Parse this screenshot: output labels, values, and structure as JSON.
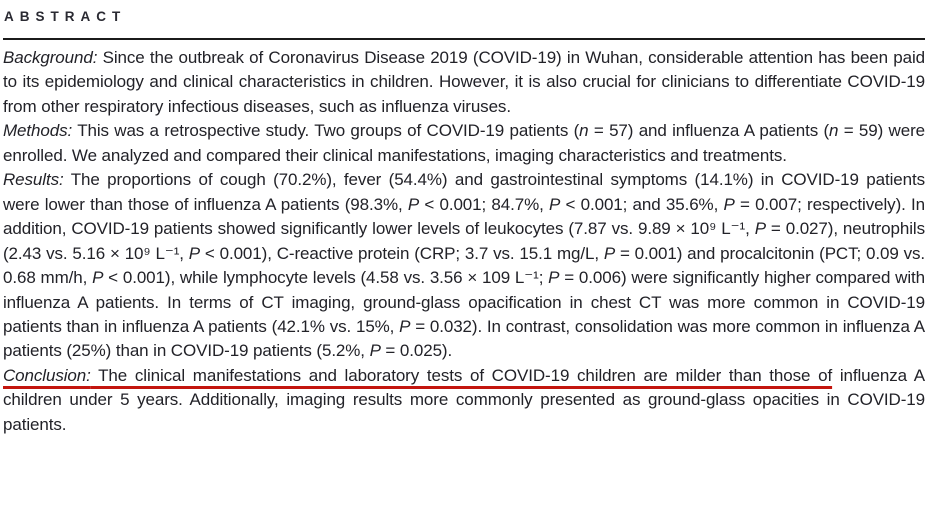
{
  "colors": {
    "annotation_red": "#c3150e",
    "text": "#222228",
    "divider": "#1b1b1b"
  },
  "abstract": {
    "heading": "ABSTRACT",
    "sections": [
      {
        "label": "Background:",
        "segments": [
          {
            "t": " Since the outbreak of Coronavirus Disease 2019 (COVID-19) in Wuhan, considerable attention has been paid to its epidemiology and clinical characteristics in children. However, it is also crucial for clinicians to differentiate COVID-19 from other respiratory infectious diseases, such as influenza viruses."
          }
        ]
      },
      {
        "label": "Methods:",
        "segments": [
          {
            "t": " This was a retrospective study. Two groups of COVID-19 patients ("
          },
          {
            "t": "n",
            "i": true
          },
          {
            "t": " = 57) and influenza A patients ("
          },
          {
            "t": "n",
            "i": true
          },
          {
            "t": " = 59) were enrolled. We analyzed and compared their clinical manifestations, imaging characteristics and treatments."
          }
        ]
      },
      {
        "label": "Results:",
        "segments": [
          {
            "t": " The proportions of cough (70.2%), fever (54.4%) and gastrointestinal symptoms (14.1%) in COVID-19 patients were lower than those of influenza A patients (98.3%, "
          },
          {
            "t": "P",
            "i": true
          },
          {
            "t": " < 0.001; 84.7%, "
          },
          {
            "t": "P",
            "i": true
          },
          {
            "t": " < 0.001; and 35.6%, "
          },
          {
            "t": "P",
            "i": true
          },
          {
            "t": " = 0.007; respectively). In addition, COVID-19 patients showed significantly lower levels of leukocytes (7.87 vs. 9.89 × 10⁹ L⁻¹, "
          },
          {
            "t": "P",
            "i": true
          },
          {
            "t": " = 0.027), neutrophils (2.43 vs. 5.16 × 10⁹ L⁻¹, "
          },
          {
            "t": "P",
            "i": true
          },
          {
            "t": " < 0.001), C-reactive protein (CRP; 3.7 vs. 15.1 mg/L, "
          },
          {
            "t": "P",
            "i": true
          },
          {
            "t": " = 0.001) and procalcitonin (PCT; 0.09 vs. 0.68 mm/h, "
          },
          {
            "t": "P",
            "i": true
          },
          {
            "t": " < 0.001), while lymphocyte levels (4.58 vs. 3.56 × 109 L⁻¹; "
          },
          {
            "t": "P",
            "i": true
          },
          {
            "t": " = 0.006) were significantly higher compared with influenza A patients. In terms of CT imaging, ground-glass opacification in chest CT was more common in COVID-19 patients than in influenza A patients (42.1% vs. 15%, "
          },
          {
            "t": "P",
            "i": true
          },
          {
            "t": " = 0.032). In contrast, consolidation was more common in influenza A patients (25%) than in COVID-19 patients (5.2%, "
          },
          {
            "t": "P",
            "i": true
          },
          {
            "t": " = 0.025)."
          }
        ]
      },
      {
        "label": "Conclusion:",
        "underline": true,
        "segments": [
          {
            "t": " The clinical manifestations and laboratory tests of COVID-19 children are milder than those of",
            "u": true
          },
          {
            "t": " influenza A children under 5 years. Additionally, imaging results more commonly presented as ground-glass opacities in COVID-19 patients."
          }
        ]
      }
    ]
  }
}
